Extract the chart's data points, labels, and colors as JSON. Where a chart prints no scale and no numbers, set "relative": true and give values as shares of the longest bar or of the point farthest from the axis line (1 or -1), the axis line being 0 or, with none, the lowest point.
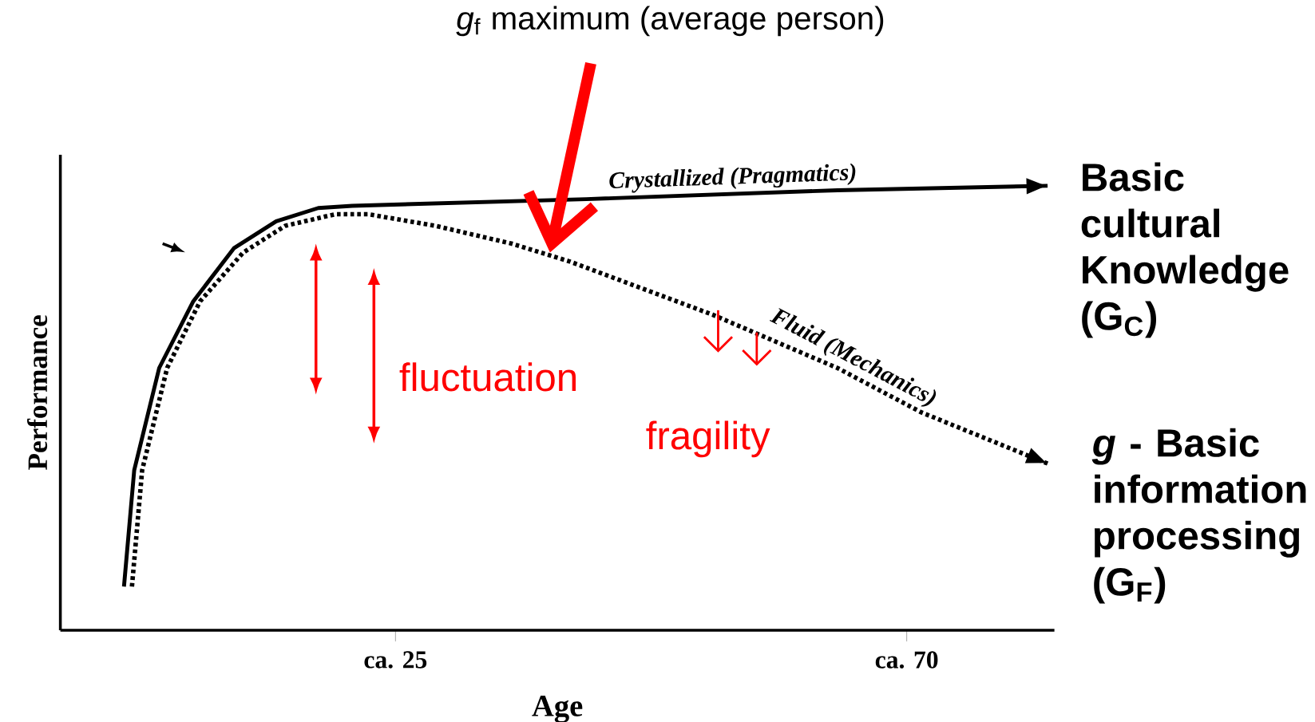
{
  "chart_data": {
    "type": "line",
    "xlabel": "Age",
    "ylabel": "Performance",
    "relative": true,
    "legend": false,
    "marker": "none",
    "x": [
      1.1,
      2.0,
      4.2,
      7.2,
      10.8,
      14.5,
      18.2,
      21.2,
      41.8,
      63.9,
      82.4
    ],
    "series": [
      {
        "name": "Crystallized (Pragmatics)",
        "color": "#000000",
        "line_style": "solid",
        "values": [
          0.098,
          0.36,
          0.59,
          0.74,
          0.86,
          0.92,
          0.95,
          0.955,
          0.97,
          0.99,
          1.0
        ]
      },
      {
        "name": "Fluid (Mechanics)",
        "color": "#000000",
        "line_style": "dotted",
        "x": [
          1.8,
          2.7,
          4.9,
          7.8,
          11.6,
          15.3,
          19.7,
          22.6,
          28.5,
          35.2,
          40.3,
          52.9,
          63.9,
          71.3,
          82.4
        ],
        "values": [
          0.098,
          0.36,
          0.59,
          0.74,
          0.85,
          0.91,
          0.936,
          0.936,
          0.91,
          0.87,
          0.83,
          0.71,
          0.59,
          0.49,
          0.375
        ]
      }
    ],
    "xlim": [
      -4.5,
      83
    ],
    "xticks": [
      {
        "value": 25,
        "label": "ca. 25"
      },
      {
        "value": 70,
        "label": "ca. 70"
      }
    ],
    "annotations": [
      "*g*$_{f}$  maximum (average person)",
      "fluctuation",
      "fragility",
      {
        "text": "Basic cultural Knowledge (G$_{C}$)",
        "x": 82.4,
        "y": 1.0
      },
      {
        "text": "*g* - Basic information processing (G$_{F}$)",
        "x": 82.4,
        "y": 0.375
      }
    ]
  }
}
